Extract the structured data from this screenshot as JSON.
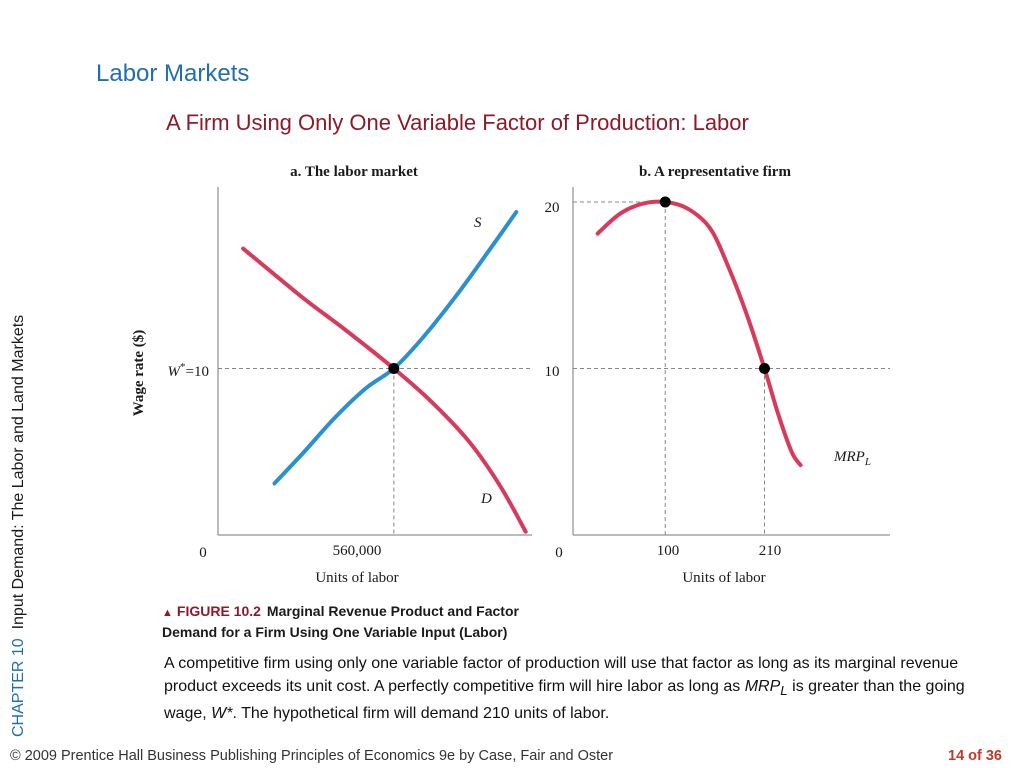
{
  "slide": {
    "title": "Labor Markets",
    "subtitle": "A Firm Using Only One Variable Factor of Production:  Labor"
  },
  "side_label": {
    "chapter": "CHAPTER 10",
    "text": "Input Demand:  The Labor and Land Markets"
  },
  "caption": {
    "figure_number": "FIGURE 10.2",
    "title_line1": "Marginal Revenue Product and Factor",
    "title_line2": "Demand for a Firm Using One Variable Input (Labor)"
  },
  "description": {
    "part1": "A competitive firm using only one variable factor of production will use that factor as long as its marginal revenue product exceeds its unit cost.  A perfectly competitive firm will hire labor as long as ",
    "mrp": "MRP",
    "mrp_sub": "L",
    "part2": " is greater than the going wage, ",
    "wstar": "W*",
    "part3": ". The hypothetical firm will demand 210 units of labor."
  },
  "footer": {
    "copyright": "© 2009 Prentice Hall Business Publishing   Principles of Economics 9e by Case, Fair and Oster",
    "page": "14 of 36"
  },
  "colors": {
    "supply": "#2b8fd0",
    "demand": "#d83a5c",
    "mrp": "#d83a5c",
    "title": "#1f6fb0",
    "subtitle": "#8b1a2b"
  },
  "chart_data": [
    {
      "type": "line",
      "title": "a. The labor market",
      "xlabel": "Units of labor",
      "ylabel": "Wage rate ($)",
      "origin_label": "0",
      "x_tick_labels": [
        "560,000"
      ],
      "y_tick_label_prefix": "W",
      "y_tick_label_sup": "*",
      "y_tick_label_suffix": "=10",
      "series": [
        {
          "name": "S",
          "points": [
            [
              180000,
              3.1
            ],
            [
              270000,
              4.9
            ],
            [
              370000,
              7.0
            ],
            [
              470000,
              8.8
            ],
            [
              560000,
              10.0
            ],
            [
              650000,
              11.8
            ],
            [
              760000,
              14.4
            ],
            [
              860000,
              17.0
            ],
            [
              950000,
              19.4
            ]
          ]
        },
        {
          "name": "D",
          "points": [
            [
              80000,
              17.2
            ],
            [
              170000,
              15.8
            ],
            [
              280000,
              14.1
            ],
            [
              400000,
              12.4
            ],
            [
              560000,
              10.0
            ],
            [
              680000,
              8.0
            ],
            [
              800000,
              5.6
            ],
            [
              900000,
              2.9
            ],
            [
              980000,
              0.2
            ]
          ]
        }
      ],
      "equilibrium": {
        "x": 560000,
        "y": 10
      }
    },
    {
      "type": "line",
      "title": "b. A representative firm",
      "xlabel": "Units of labor",
      "origin_label": "0",
      "x_tick_labels": [
        "100",
        "210"
      ],
      "y_tick_labels": [
        "10",
        "20"
      ],
      "series": [
        {
          "name": "MRP",
          "name_sub": "L",
          "points": [
            [
              25,
              18.1
            ],
            [
              50,
              19.3
            ],
            [
              75,
              19.9
            ],
            [
              100,
              20.0
            ],
            [
              125,
              19.6
            ],
            [
              150,
              18.4
            ],
            [
              170,
              16.1
            ],
            [
              190,
              13.3
            ],
            [
              210,
              10.0
            ],
            [
              225,
              7.3
            ],
            [
              240,
              5.0
            ],
            [
              250,
              4.2
            ]
          ]
        }
      ],
      "marked_points": [
        [
          100,
          20
        ],
        [
          210,
          10
        ]
      ],
      "wage_line": 10
    }
  ]
}
